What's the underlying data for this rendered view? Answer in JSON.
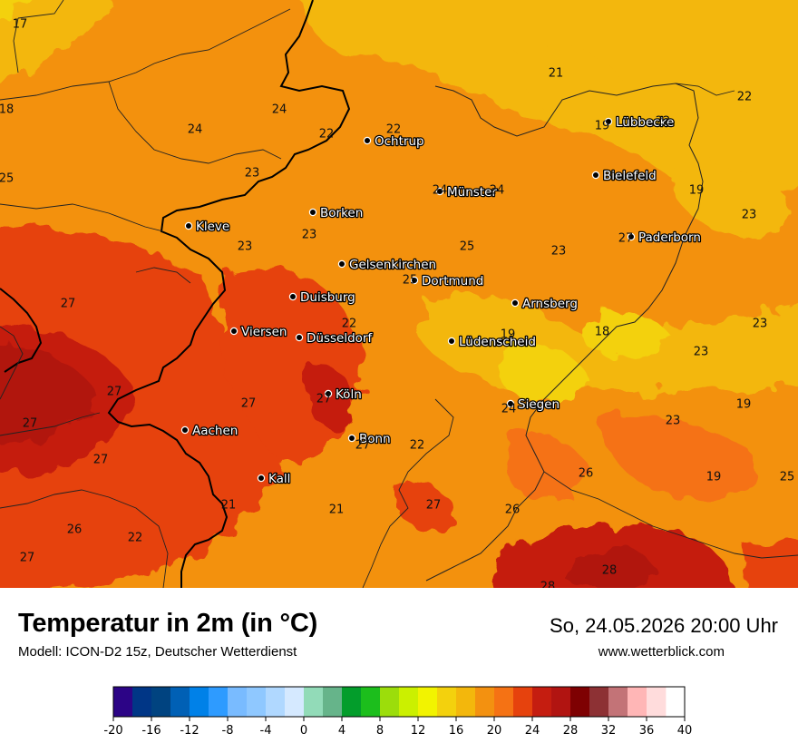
{
  "title": "Temperatur in 2m (in °C)",
  "subtitle": "Modell: ICON-D2 15z, Deutscher Wetterdienst",
  "datetime": "So, 24.05.2026 20:00 Uhr",
  "website": "www.wetterblick.com",
  "colors": {
    "border": "#000000",
    "region_line": "#222222",
    "city_dot": "#000000"
  },
  "cities": [
    {
      "name": "Ochtrup"
    },
    {
      "name": "Lübbecke"
    },
    {
      "name": "Bielefeld"
    },
    {
      "name": "Münster"
    },
    {
      "name": "Borken"
    },
    {
      "name": "Kleve"
    },
    {
      "name": "Paderborn"
    },
    {
      "name": "Gelsenkirchen"
    },
    {
      "name": "Dortmund"
    },
    {
      "name": "Duisburg"
    },
    {
      "name": "Arnsberg"
    },
    {
      "name": "Viersen"
    },
    {
      "name": "Düsseldorf"
    },
    {
      "name": "Lüdenscheid"
    },
    {
      "name": "Köln"
    },
    {
      "name": "Siegen"
    },
    {
      "name": "Aachen"
    },
    {
      "name": "Bonn"
    },
    {
      "name": "Kall"
    }
  ],
  "temperature_labels": [
    "17",
    "18",
    "25",
    "24",
    "24",
    "22",
    "22",
    "23",
    "21",
    "22",
    "19",
    "22",
    "24",
    "24",
    "19",
    "23",
    "23",
    "23",
    "25",
    "23",
    "27",
    "25",
    "22",
    "27",
    "19",
    "18",
    "23",
    "23",
    "27",
    "27",
    "27",
    "27",
    "19",
    "23",
    "24",
    "27",
    "22",
    "27",
    "26",
    "19",
    "25",
    "21",
    "21",
    "27",
    "26",
    "26",
    "22",
    "27",
    "28",
    "28"
  ],
  "legend": {
    "min": -20,
    "max": 40,
    "step": 2,
    "tick_labels": [
      "-20",
      "-16",
      "-12",
      "-8",
      "-4",
      "0",
      "4",
      "8",
      "12",
      "16",
      "20",
      "24",
      "28",
      "32",
      "36",
      "40"
    ],
    "colors": [
      "#2c0486",
      "#003686",
      "#004380",
      "#0060b5",
      "#0081e8",
      "#2e9bff",
      "#79bbff",
      "#8fc8ff",
      "#b0d8ff",
      "#d5e9ff",
      "#92dbb8",
      "#66b48a",
      "#039d2b",
      "#1cbe1c",
      "#9cdd0b",
      "#cbf000",
      "#f2f300",
      "#f3d10d",
      "#f3b70c",
      "#f39110",
      "#f57214",
      "#e6420d",
      "#c51d10",
      "#b11411",
      "#7e0102",
      "#8d3134",
      "#c37377",
      "#ffb6b6",
      "#ffdcdc"
    ]
  }
}
